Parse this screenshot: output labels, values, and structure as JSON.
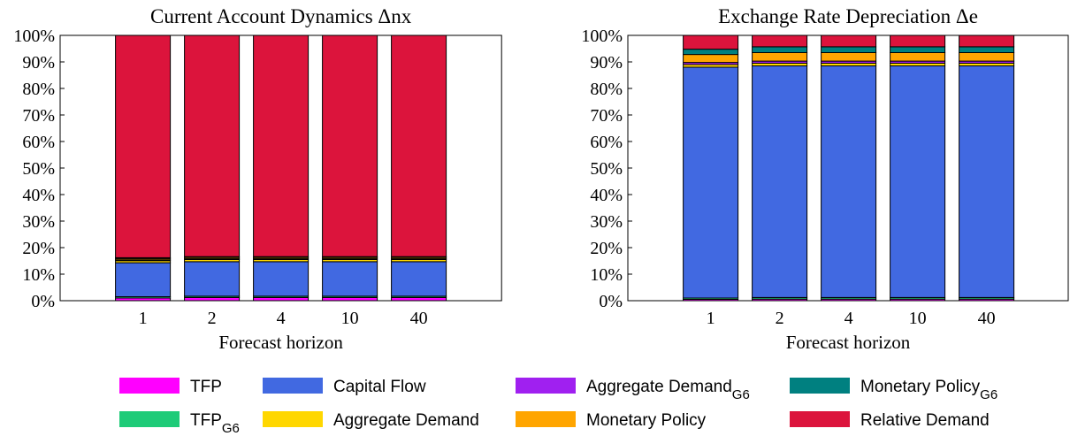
{
  "chart_data": [
    {
      "type": "stacked-bar",
      "title": "Current Account Dynamics Δnx",
      "xlabel": "Forecast horizon",
      "categories": [
        "1",
        "2",
        "4",
        "10",
        "40"
      ],
      "ylim": [
        0,
        100
      ],
      "yticks": [
        {
          "value": 0,
          "label": "0%"
        },
        {
          "value": 10,
          "label": "10%"
        },
        {
          "value": 20,
          "label": "20%"
        },
        {
          "value": 30,
          "label": "30%"
        },
        {
          "value": 40,
          "label": "40%"
        },
        {
          "value": 50,
          "label": "50%"
        },
        {
          "value": 60,
          "label": "60%"
        },
        {
          "value": 70,
          "label": "70%"
        },
        {
          "value": 80,
          "label": "80%"
        },
        {
          "value": 90,
          "label": "90%"
        },
        {
          "value": 100,
          "label": "100%"
        }
      ],
      "grid": false,
      "legend": "bottom",
      "series": [
        {
          "name": "TFP",
          "color": "#ff00ff",
          "values": [
            1,
            1.2,
            1.2,
            1.2,
            1.2
          ]
        },
        {
          "name": "TFP",
          "subscript": "G6",
          "color": "#1ecb78",
          "values": [
            0.5,
            0.5,
            0.5,
            0.5,
            0.5
          ]
        },
        {
          "name": "Capital Flow",
          "color": "#4169e1",
          "values": [
            12.8,
            13,
            13,
            13,
            13
          ]
        },
        {
          "name": "Aggregate Demand",
          "color": "#ffd700",
          "values": [
            0.8,
            0.8,
            0.8,
            0.8,
            0.8
          ]
        },
        {
          "name": "Aggregate Demand",
          "subscript": "G6",
          "color": "#a020f0",
          "values": [
            0.3,
            0.3,
            0.3,
            0.3,
            0.3
          ]
        },
        {
          "name": "Monetary Policy",
          "color": "#ffa500",
          "values": [
            0.5,
            0.5,
            0.5,
            0.5,
            0.5
          ]
        },
        {
          "name": "Monetary Policy",
          "subscript": "G6",
          "color": "#008080",
          "values": [
            0.3,
            0.3,
            0.3,
            0.3,
            0.3
          ]
        },
        {
          "name": "Relative Demand",
          "color": "#dc143c",
          "values": [
            83.8,
            83.4,
            83.4,
            83.4,
            83.4
          ]
        }
      ]
    },
    {
      "type": "stacked-bar",
      "title": "Exchange Rate Depreciation Δe",
      "xlabel": "Forecast horizon",
      "categories": [
        "1",
        "2",
        "4",
        "10",
        "40"
      ],
      "ylim": [
        0,
        100
      ],
      "yticks": [
        {
          "value": 0,
          "label": "0%"
        },
        {
          "value": 10,
          "label": "10%"
        },
        {
          "value": 20,
          "label": "20%"
        },
        {
          "value": 30,
          "label": "30%"
        },
        {
          "value": 40,
          "label": "40%"
        },
        {
          "value": 50,
          "label": "50%"
        },
        {
          "value": 60,
          "label": "60%"
        },
        {
          "value": 70,
          "label": "70%"
        },
        {
          "value": 80,
          "label": "80%"
        },
        {
          "value": 90,
          "label": "90%"
        },
        {
          "value": 100,
          "label": "100%"
        }
      ],
      "grid": false,
      "series": [
        {
          "name": "TFP",
          "color": "#ff00ff",
          "values": [
            0.5,
            0.6,
            0.6,
            0.6,
            0.6
          ]
        },
        {
          "name": "TFP",
          "subscript": "G6",
          "color": "#1ecb78",
          "values": [
            0.5,
            0.6,
            0.6,
            0.6,
            0.6
          ]
        },
        {
          "name": "Capital Flow",
          "color": "#4169e1",
          "values": [
            87,
            87.3,
            87.3,
            87.3,
            87.3
          ]
        },
        {
          "name": "Aggregate Demand",
          "color": "#ffd700",
          "values": [
            1,
            1,
            1,
            1,
            1
          ]
        },
        {
          "name": "Aggregate Demand",
          "subscript": "G6",
          "color": "#a020f0",
          "values": [
            0.8,
            0.8,
            0.8,
            0.8,
            0.8
          ]
        },
        {
          "name": "Monetary Policy",
          "color": "#ffa500",
          "values": [
            3,
            3.2,
            3.2,
            3.2,
            3.2
          ]
        },
        {
          "name": "Monetary Policy",
          "subscript": "G6",
          "color": "#008080",
          "values": [
            2,
            2.2,
            2.2,
            2.2,
            2.2
          ]
        },
        {
          "name": "Relative Demand",
          "color": "#dc143c",
          "values": [
            5.2,
            4.3,
            4.3,
            4.3,
            4.3
          ]
        }
      ]
    }
  ]
}
